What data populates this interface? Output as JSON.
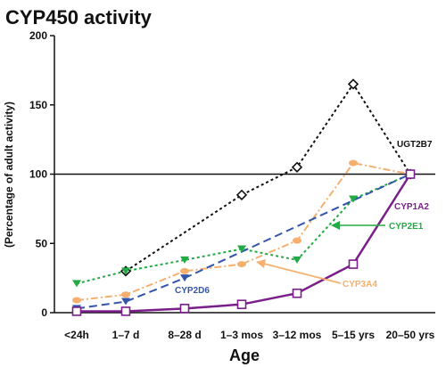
{
  "chart_data": {
    "type": "line",
    "title": "CYP450 activity",
    "xlabel": "Age",
    "ylabel": "(Percentage of adult activity)",
    "categories": [
      "<24h",
      "1–7 d",
      "8–28 d",
      "1–3 mos",
      "3–12 mos",
      "5–15 yrs",
      "20–50 yrs"
    ],
    "ylim": [
      0,
      200
    ],
    "yticks": [
      0,
      50,
      100,
      150,
      200
    ],
    "reference_line": 100,
    "grid": false,
    "series": [
      {
        "name": "UGT2B7",
        "color": "#111111",
        "dash": "dot",
        "marker": "diamond",
        "marker_at": [
          1,
          3,
          4,
          5,
          6
        ],
        "values": [
          null,
          30,
          null,
          85,
          105,
          165,
          100
        ]
      },
      {
        "name": "CYP3A4",
        "color": "#f5b070",
        "dash": "dashdot",
        "marker": "circle",
        "marker_at": [
          0,
          1,
          2,
          3,
          4,
          5,
          6
        ],
        "values": [
          9,
          13,
          30,
          35,
          52,
          108,
          100
        ]
      },
      {
        "name": "CYP2E1",
        "color": "#22aa44",
        "dash": "dot",
        "marker": "triangle",
        "marker_at": [
          0,
          1,
          2,
          3,
          4,
          5,
          6
        ],
        "values": [
          21,
          30,
          38,
          46,
          38,
          82,
          100
        ]
      },
      {
        "name": "CYP2D6",
        "color": "#3355aa",
        "dash": "dash",
        "marker": "triangle",
        "marker_at": [
          0,
          1,
          2,
          6
        ],
        "values": [
          3,
          8,
          25,
          null,
          null,
          null,
          100
        ]
      },
      {
        "name": "CYP1A2",
        "color": "#7a1f8a",
        "dash": "solid",
        "marker": "square",
        "marker_at": [
          0,
          1,
          2,
          3,
          4,
          5,
          6
        ],
        "values": [
          1,
          1,
          3,
          6,
          14,
          35,
          100
        ]
      }
    ]
  }
}
